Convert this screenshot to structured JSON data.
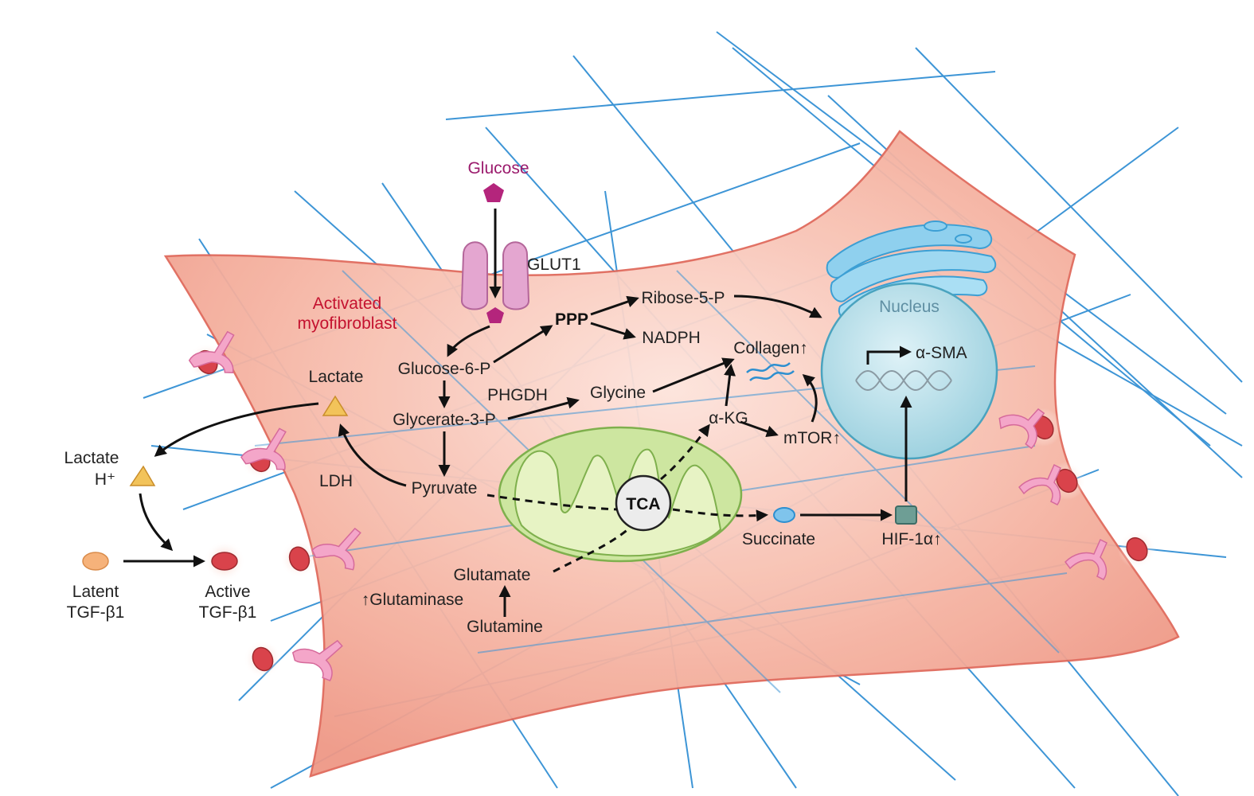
{
  "labels": {
    "glucose": "Glucose",
    "glut1": "GLUT1",
    "activated_line1": "Activated",
    "activated_line2": "myofibroblast",
    "ppp": "PPP",
    "ribose5p": "Ribose-5-P",
    "nadph": "NADPH",
    "glucose6p": "Glucose-6-P",
    "phgdh": "PHGDH",
    "glycine": "Glycine",
    "glycerate3p": "Glycerate-3-P",
    "pyruvate": "Pyruvate",
    "ldh": "LDH",
    "lactate_in": "Lactate",
    "lactate_out": "Lactate",
    "h_plus": "H⁺",
    "latent_line1": "Latent",
    "latent_line2": "TGF-β1",
    "active_line1": "Active",
    "active_line2": "TGF-β1",
    "glutaminase": "↑Glutaminase",
    "glutamate": "Glutamate",
    "glutamine": "Glutamine",
    "tca": "TCA",
    "akg": "α-KG",
    "mtor": "mTOR↑",
    "collagen": "Collagen↑",
    "succinate": "Succinate",
    "hif1a": "HIF-1α↑",
    "nucleus": "Nucleus",
    "asma": "α-SMA"
  },
  "colors": {
    "cell_fill": "#f6b3a2",
    "cell_stroke": "#e06a5c",
    "fiber": "#3d95d6",
    "nucleus_fill": "#b7e0ea",
    "mito_fill": "#c9e59b",
    "glucose": "#b4257c",
    "lactate": "#f2c35a",
    "active_tgf": "#d9434b",
    "latent_tgf": "#f6b27a",
    "receptor": "#f4a6c9"
  }
}
